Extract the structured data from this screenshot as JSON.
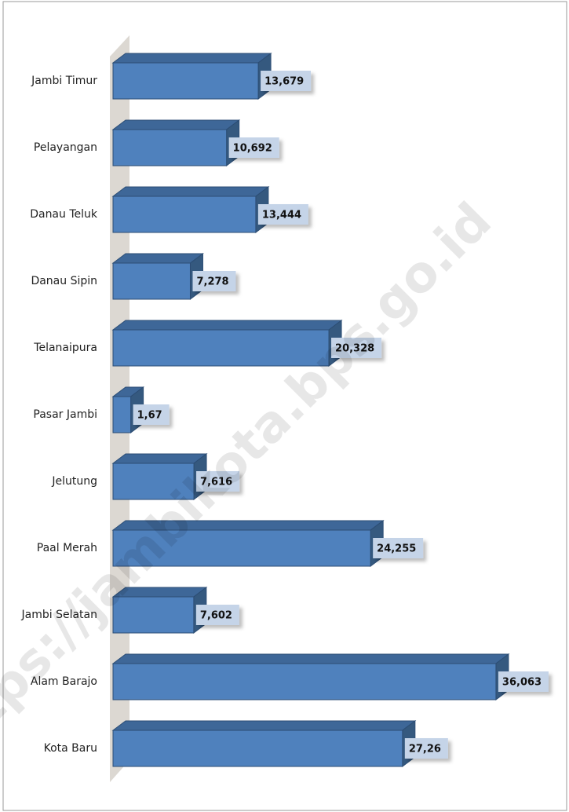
{
  "chart_data": {
    "type": "bar",
    "orientation": "horizontal",
    "categories": [
      "Jambi Timur",
      "Pelayangan",
      "Danau Teluk",
      "Danau Sipin",
      "Telanaipura",
      "Pasar Jambi",
      "Jelutung",
      "Paal Merah",
      "Jambi Selatan",
      "Alam Barajo",
      "Kota Baru"
    ],
    "values": [
      13.679,
      10.692,
      13.444,
      7.278,
      20.328,
      1.67,
      7.616,
      24.255,
      7.602,
      36.063,
      27.26
    ],
    "value_labels": [
      "13,679",
      "10,692",
      "13,444",
      "7,278",
      "20,328",
      "1,67",
      "7,616",
      "24,255",
      "7,602",
      "36,063",
      "27,26"
    ],
    "color": "#4f81bd",
    "watermark": "https://jambikota.bps.go.id"
  }
}
